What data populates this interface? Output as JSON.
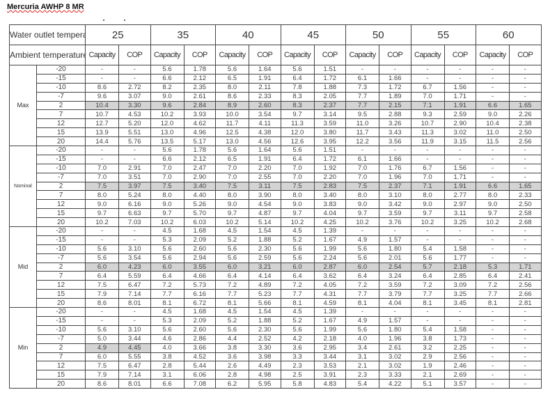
{
  "title": "Mercuria AWHP 8 MR",
  "header": {
    "water_outlet_label": "Water outlet temperature[°C]",
    "ambient_label": "Ambient temperature[°C]",
    "temperatures": [
      "25",
      "35",
      "40",
      "45",
      "50",
      "55",
      "60"
    ],
    "capacity_label": "Capacity",
    "cop_label": "COP"
  },
  "highlight_color": "#d4d4d4",
  "sections": [
    {
      "label": "Max",
      "rows": [
        {
          "ambient": "-20",
          "values": [
            "-",
            "-",
            "5.6",
            "1.78",
            "5.6",
            "1.64",
            "5.6",
            "1.51",
            "-",
            "-",
            "-",
            "-",
            "-",
            "-"
          ]
        },
        {
          "ambient": "-15",
          "values": [
            "-",
            "-",
            "6.6",
            "2.12",
            "6.5",
            "1.91",
            "6.4",
            "1.72",
            "6.1",
            "1.66",
            "-",
            "-",
            "-",
            "-"
          ]
        },
        {
          "ambient": "-10",
          "values": [
            "8.6",
            "2.72",
            "8.2",
            "2.35",
            "8.0",
            "2.11",
            "7.8",
            "1.88",
            "7.3",
            "1.72",
            "6.7",
            "1.56",
            "-",
            "-"
          ]
        },
        {
          "ambient": "-7",
          "values": [
            "9.6",
            "3.07",
            "9.0",
            "2.61",
            "8.6",
            "2.33",
            "8.3",
            "2.05",
            "7.7",
            "1.89",
            "7.0",
            "1.71",
            "-",
            "-"
          ]
        },
        {
          "ambient": "2",
          "highlight": 14,
          "values": [
            "10.4",
            "3.30",
            "9.6",
            "2.84",
            "8.9",
            "2.60",
            "8.3",
            "2.37",
            "7.7",
            "2.15",
            "7.1",
            "1.91",
            "6.6",
            "1.65"
          ]
        },
        {
          "ambient": "7",
          "values": [
            "10.7",
            "4.53",
            "10.2",
            "3.93",
            "10.0",
            "3.54",
            "9.7",
            "3.14",
            "9.5",
            "2.88",
            "9.3",
            "2.59",
            "9.0",
            "2.26"
          ]
        },
        {
          "ambient": "12",
          "values": [
            "12.7",
            "5.20",
            "12.0",
            "4.62",
            "11.7",
            "4.11",
            "11.3",
            "3.59",
            "11.0",
            "3.26",
            "10.7",
            "2.90",
            "10.4",
            "2.38"
          ]
        },
        {
          "ambient": "15",
          "values": [
            "13.9",
            "5.51",
            "13.0",
            "4.96",
            "12.5",
            "4.38",
            "12.0",
            "3.80",
            "11.7",
            "3.43",
            "11.3",
            "3.02",
            "11.0",
            "2.50"
          ]
        },
        {
          "ambient": "20",
          "values": [
            "14.4",
            "5.76",
            "13.5",
            "5.17",
            "13.0",
            "4.56",
            "12.6",
            "3.95",
            "12.2",
            "3.56",
            "11.9",
            "3.15",
            "11.5",
            "2.56"
          ]
        }
      ]
    },
    {
      "label": "Nominal",
      "rows": [
        {
          "ambient": "-20",
          "values": [
            "-",
            "-",
            "5.6",
            "1.78",
            "5.6",
            "1.64",
            "5.6",
            "1.51",
            "-",
            "-",
            "-",
            "-",
            "-",
            "-"
          ]
        },
        {
          "ambient": "-15",
          "values": [
            "-",
            "-",
            "6.6",
            "2.12",
            "6.5",
            "1.91",
            "6.4",
            "1.72",
            "6.1",
            "1.66",
            "-",
            "-",
            "-",
            "-"
          ]
        },
        {
          "ambient": "-10",
          "values": [
            "7.0",
            "2.91",
            "7.0",
            "2.47",
            "7.0",
            "2.20",
            "7.0",
            "1.92",
            "7.0",
            "1.76",
            "6.7",
            "1.56",
            "-",
            "-"
          ]
        },
        {
          "ambient": "-7",
          "values": [
            "7.0",
            "3.51",
            "7.0",
            "2.90",
            "7.0",
            "2.55",
            "7.0",
            "2.20",
            "7.0",
            "1.96",
            "7.0",
            "1.71",
            "-",
            "-"
          ]
        },
        {
          "ambient": "2",
          "highlight": 14,
          "values": [
            "7.5",
            "3.97",
            "7.5",
            "3.40",
            "7.5",
            "3.11",
            "7.5",
            "2.83",
            "7.5",
            "2.37",
            "7.1",
            "1.91",
            "6.6",
            "1.65"
          ]
        },
        {
          "ambient": "7",
          "values": [
            "8.0",
            "5.24",
            "8.0",
            "4.40",
            "8.0",
            "3.90",
            "8.0",
            "3.40",
            "8.0",
            "3.10",
            "8.0",
            "2.77",
            "8.0",
            "2.33"
          ]
        },
        {
          "ambient": "12",
          "values": [
            "9.0",
            "6.16",
            "9.0",
            "5.26",
            "9.0",
            "4.54",
            "9.0",
            "3.83",
            "9.0",
            "3.42",
            "9.0",
            "2.97",
            "9.0",
            "2.50"
          ]
        },
        {
          "ambient": "15",
          "values": [
            "9.7",
            "6.63",
            "9.7",
            "5.70",
            "9.7",
            "4.87",
            "9.7",
            "4.04",
            "9.7",
            "3.59",
            "9.7",
            "3.11",
            "9.7",
            "2.58"
          ]
        },
        {
          "ambient": "20",
          "values": [
            "10.2",
            "7.03",
            "10.2",
            "6.03",
            "10.2",
            "5.14",
            "10.2",
            "4.25",
            "10.2",
            "3.76",
            "10.2",
            "3.25",
            "10.2",
            "2.68"
          ]
        }
      ]
    },
    {
      "label": "Mid",
      "rows": [
        {
          "ambient": "-20",
          "values": [
            "-",
            "-",
            "4.5",
            "1.68",
            "4.5",
            "1.54",
            "4.5",
            "1.39",
            "-",
            "-",
            "-",
            "-",
            "-",
            "-"
          ]
        },
        {
          "ambient": "-15",
          "values": [
            "-",
            "-",
            "5.3",
            "2.09",
            "5.2",
            "1.88",
            "5.2",
            "1.67",
            "4.9",
            "1.57",
            "-",
            "-",
            "-",
            "-"
          ]
        },
        {
          "ambient": "-10",
          "values": [
            "5.6",
            "3.10",
            "5.6",
            "2.60",
            "5.6",
            "2.30",
            "5.6",
            "1.99",
            "5.6",
            "1.80",
            "5.4",
            "1.58",
            "-",
            "-"
          ]
        },
        {
          "ambient": "-7",
          "values": [
            "5.6",
            "3.54",
            "5.6",
            "2.94",
            "5.6",
            "2.59",
            "5.6",
            "2.24",
            "5.6",
            "2.01",
            "5.6",
            "1.77",
            "-",
            "-"
          ]
        },
        {
          "ambient": "2",
          "highlight": 14,
          "values": [
            "6.0",
            "4.23",
            "6.0",
            "3.55",
            "6.0",
            "3.21",
            "6.0",
            "2.87",
            "6.0",
            "2.54",
            "5.7",
            "2.18",
            "5.3",
            "1.71"
          ]
        },
        {
          "ambient": "7",
          "values": [
            "6.4",
            "5.59",
            "6.4",
            "4.66",
            "6.4",
            "4.14",
            "6.4",
            "3.62",
            "6.4",
            "3.24",
            "6.4",
            "2.85",
            "6.4",
            "2.41"
          ]
        },
        {
          "ambient": "12",
          "values": [
            "7.5",
            "6.47",
            "7.2",
            "5.73",
            "7.2",
            "4.89",
            "7.2",
            "4.05",
            "7.2",
            "3.59",
            "7.2",
            "3.09",
            "7.2",
            "2.56"
          ]
        },
        {
          "ambient": "15",
          "values": [
            "7.9",
            "7.14",
            "7.7",
            "6.16",
            "7.7",
            "5.23",
            "7.7",
            "4.31",
            "7.7",
            "3.79",
            "7.7",
            "3.25",
            "7.7",
            "2.66"
          ]
        },
        {
          "ambient": "20",
          "values": [
            "8.6",
            "8.01",
            "8.1",
            "6.72",
            "8.1",
            "5.66",
            "8.1",
            "4.59",
            "8.1",
            "4.04",
            "8.1",
            "3.45",
            "8.1",
            "2.81"
          ]
        }
      ]
    },
    {
      "label": "Min",
      "rows": [
        {
          "ambient": "-20",
          "values": [
            "-",
            "-",
            "4.5",
            "1.68",
            "4.5",
            "1.54",
            "4.5",
            "1.39",
            "-",
            "-",
            "-",
            "-",
            "-",
            "-"
          ]
        },
        {
          "ambient": "-15",
          "values": [
            "-",
            "-",
            "5.3",
            "2.09",
            "5.2",
            "1.88",
            "5.2",
            "1.67",
            "4.9",
            "1.57",
            "-",
            "-",
            "-",
            "-"
          ]
        },
        {
          "ambient": "-10",
          "values": [
            "5.6",
            "3.10",
            "5.6",
            "2.60",
            "5.6",
            "2.30",
            "5.6",
            "1.99",
            "5.6",
            "1.80",
            "5.4",
            "1.58",
            "-",
            "-"
          ]
        },
        {
          "ambient": "-7",
          "values": [
            "5.0",
            "3.44",
            "4.6",
            "2.86",
            "4.4",
            "2.52",
            "4.2",
            "2.18",
            "4.0",
            "1.96",
            "3.8",
            "1.73",
            "-",
            "-"
          ]
        },
        {
          "ambient": "2",
          "highlight": 2,
          "values": [
            "4.9",
            "4.45",
            "4.0",
            "3.66",
            "3.8",
            "3.30",
            "3.6",
            "2.95",
            "3.4",
            "2.61",
            "3.2",
            "2.25",
            "-",
            "-"
          ]
        },
        {
          "ambient": "7",
          "values": [
            "6.0",
            "5.55",
            "3.8",
            "4.52",
            "3.6",
            "3.98",
            "3.3",
            "3.44",
            "3.1",
            "3.02",
            "2.9",
            "2.56",
            "-",
            "-"
          ]
        },
        {
          "ambient": "12",
          "values": [
            "7.5",
            "6.47",
            "2.8",
            "5.44",
            "2.6",
            "4.49",
            "2.3",
            "3.53",
            "2.1",
            "3.02",
            "1.9",
            "2.46",
            "-",
            "-"
          ]
        },
        {
          "ambient": "15",
          "values": [
            "7.9",
            "7.14",
            "3.1",
            "6.06",
            "2.8",
            "4.98",
            "2.5",
            "3.91",
            "2.3",
            "3.33",
            "2.1",
            "2.69",
            "-",
            "-"
          ]
        },
        {
          "ambient": "20",
          "values": [
            "8.6",
            "8.01",
            "6.6",
            "7.08",
            "6.2",
            "5.95",
            "5.8",
            "4.83",
            "5.4",
            "4.22",
            "5.1",
            "3.57",
            "-",
            "-"
          ]
        }
      ]
    }
  ]
}
